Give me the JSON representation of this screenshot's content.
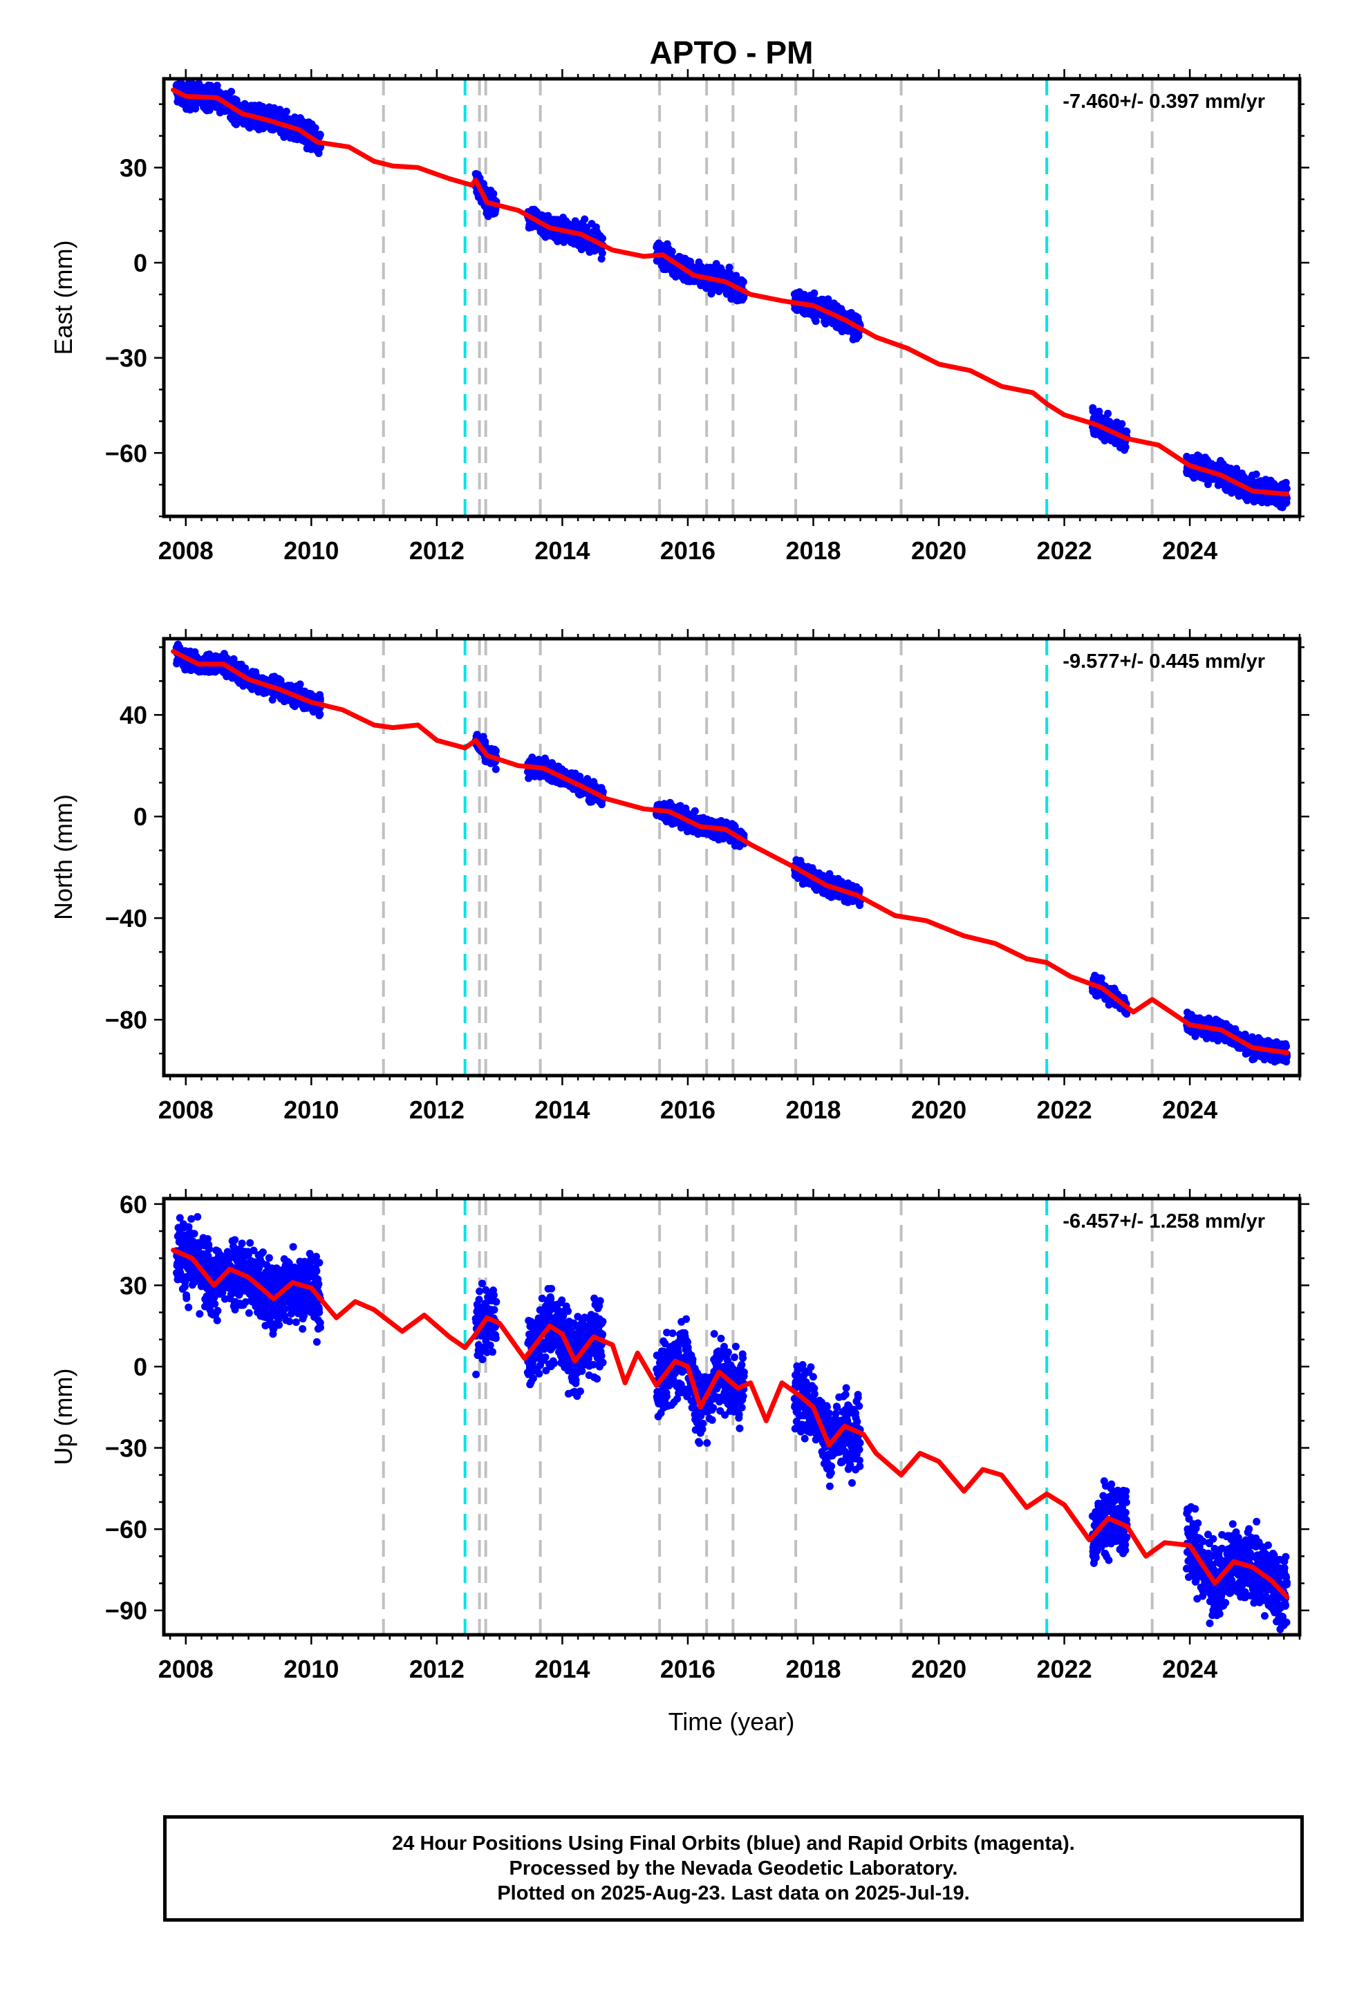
{
  "title": "APTO - PM",
  "xlabel": "Time (year)",
  "footer": {
    "line1": "24 Hour Positions Using Final Orbits (blue) and Rapid Orbits (magenta).",
    "line2": "Processed by the Nevada Geodetic Laboratory.",
    "line3": "Plotted on 2025-Aug-23. Last data on 2025-Jul-19."
  },
  "colors": {
    "observations": "#0000ff",
    "model": "#ff0000",
    "equipment_change": "#00e5e5",
    "other_event": "#c0c0c0"
  },
  "chart_data": [
    {
      "type": "scatter",
      "component": "East",
      "ylabel": "East (mm)",
      "rate_text": "-7.460+/- 0.397 mm/yr",
      "xlim": [
        2007.65,
        2025.75
      ],
      "ylim": [
        -80,
        58
      ],
      "xticks": [
        2008,
        2010,
        2012,
        2014,
        2016,
        2018,
        2020,
        2022,
        2024
      ],
      "yticks": [
        -60,
        -30,
        0,
        30
      ],
      "grid": false,
      "data_segments": [
        [
          2007.85,
          2010.15
        ],
        [
          2012.62,
          2012.95
        ],
        [
          2013.45,
          2014.65
        ],
        [
          2015.5,
          2016.9
        ],
        [
          2017.7,
          2018.75
        ],
        [
          2022.45,
          2023.0
        ],
        [
          2023.95,
          2025.55
        ]
      ],
      "series": [
        {
          "kind": "model",
          "x": [
            2007.8,
            2008.0,
            2008.5,
            2008.9,
            2009.3,
            2009.8,
            2010.1,
            2010.6,
            2011.0,
            2011.3,
            2011.7,
            2012.2,
            2012.55,
            2012.62,
            2012.8,
            2013.3,
            2013.8,
            2014.3,
            2014.8,
            2015.3,
            2015.6,
            2016.1,
            2016.6,
            2017.0,
            2017.5,
            2018.0,
            2018.5,
            2019.0,
            2019.5,
            2020.0,
            2020.5,
            2021.0,
            2021.5,
            2021.72,
            2022.0,
            2022.5,
            2023.0,
            2023.5,
            2024.0,
            2024.5,
            2025.0,
            2025.55
          ],
          "y": [
            54.5,
            52.5,
            52.0,
            47.0,
            45.0,
            42.0,
            38.0,
            36.5,
            32.0,
            30.5,
            30.0,
            26.5,
            24.5,
            26.0,
            19.0,
            16.5,
            11.0,
            9.0,
            4.0,
            2.0,
            2.5,
            -4.0,
            -6.0,
            -10.0,
            -12.0,
            -13.5,
            -18.0,
            -23.5,
            -27.0,
            -32.0,
            -34.0,
            -39.0,
            -41.0,
            -44.5,
            -48.0,
            -51.0,
            -55.5,
            -57.5,
            -64.0,
            -67.0,
            -72.0,
            -73.0
          ]
        }
      ]
    },
    {
      "type": "scatter",
      "component": "North",
      "ylabel": "North (mm)",
      "rate_text": "-9.577+/- 0.445 mm/yr",
      "xlim": [
        2007.65,
        2025.75
      ],
      "ylim": [
        -102,
        70
      ],
      "xticks": [
        2008,
        2010,
        2012,
        2014,
        2016,
        2018,
        2020,
        2022,
        2024
      ],
      "yticks": [
        -80,
        -40,
        0,
        40
      ],
      "grid": false,
      "data_segments": [
        [
          2007.85,
          2010.15
        ],
        [
          2012.62,
          2012.95
        ],
        [
          2013.45,
          2014.65
        ],
        [
          2015.5,
          2016.9
        ],
        [
          2017.7,
          2018.75
        ],
        [
          2022.45,
          2023.0
        ],
        [
          2023.95,
          2025.55
        ]
      ],
      "series": [
        {
          "kind": "model",
          "x": [
            2007.8,
            2008.2,
            2008.6,
            2009.0,
            2009.5,
            2010.0,
            2010.5,
            2011.0,
            2011.3,
            2011.7,
            2012.0,
            2012.45,
            2012.62,
            2012.8,
            2013.3,
            2013.7,
            2014.3,
            2014.7,
            2015.3,
            2015.7,
            2016.2,
            2016.6,
            2017.0,
            2017.7,
            2018.2,
            2018.7,
            2019.3,
            2019.8,
            2020.4,
            2020.9,
            2021.4,
            2021.72,
            2022.1,
            2022.6,
            2023.1,
            2023.4,
            2024.0,
            2024.5,
            2025.0,
            2025.55
          ],
          "y": [
            65.0,
            60.0,
            60.0,
            54.0,
            50.0,
            45.0,
            42.0,
            36.0,
            35.0,
            36.0,
            30.0,
            27.0,
            30.0,
            24.0,
            20.0,
            19.0,
            12.0,
            7.0,
            3.0,
            2.0,
            -4.0,
            -5.0,
            -11.0,
            -20.0,
            -27.0,
            -31.0,
            -39.0,
            -41.0,
            -47.0,
            -50.0,
            -56.0,
            -57.5,
            -63.0,
            -67.5,
            -77.0,
            -72.0,
            -82.0,
            -84.0,
            -91.0,
            -93.0
          ]
        }
      ]
    },
    {
      "type": "scatter",
      "component": "Up",
      "ylabel": "Up (mm)",
      "rate_text": "-6.457+/- 1.258 mm/yr",
      "xlim": [
        2007.65,
        2025.75
      ],
      "ylim": [
        -99,
        62
      ],
      "xticks": [
        2008,
        2010,
        2012,
        2014,
        2016,
        2018,
        2020,
        2022,
        2024
      ],
      "yticks": [
        -90,
        -60,
        -30,
        0,
        30,
        60
      ],
      "grid": false,
      "data_segments": [
        [
          2007.85,
          2010.15
        ],
        [
          2012.62,
          2012.95
        ],
        [
          2013.45,
          2014.65
        ],
        [
          2015.5,
          2016.9
        ],
        [
          2017.7,
          2018.75
        ],
        [
          2022.45,
          2023.0
        ],
        [
          2023.95,
          2025.55
        ]
      ],
      "series": [
        {
          "kind": "model",
          "x": [
            2007.8,
            2008.1,
            2008.45,
            2008.7,
            2009.0,
            2009.4,
            2009.7,
            2010.0,
            2010.4,
            2010.7,
            2011.0,
            2011.45,
            2011.8,
            2012.2,
            2012.45,
            2012.62,
            2012.8,
            2013.0,
            2013.4,
            2013.8,
            2014.0,
            2014.2,
            2014.5,
            2014.8,
            2015.0,
            2015.2,
            2015.5,
            2015.8,
            2016.0,
            2016.2,
            2016.5,
            2016.8,
            2017.0,
            2017.25,
            2017.5,
            2017.8,
            2018.0,
            2018.25,
            2018.5,
            2018.8,
            2019.0,
            2019.4,
            2019.7,
            2020.0,
            2020.4,
            2020.7,
            2021.0,
            2021.4,
            2021.72,
            2022.0,
            2022.4,
            2022.7,
            2023.0,
            2023.3,
            2023.6,
            2024.0,
            2024.4,
            2024.7,
            2025.0,
            2025.3,
            2025.55
          ],
          "y": [
            43,
            40,
            30,
            36,
            33,
            25,
            31,
            29,
            18,
            24,
            21,
            13,
            19,
            11,
            7,
            12,
            18,
            16,
            3,
            15,
            12,
            2,
            11,
            8,
            -6,
            5,
            -7,
            2,
            0,
            -15,
            -2,
            -8,
            -6,
            -20,
            -6,
            -11,
            -15,
            -29,
            -22,
            -25,
            -32,
            -40,
            -32,
            -35,
            -46,
            -38,
            -40,
            -52,
            -47,
            -51,
            -64,
            -56,
            -59,
            -70,
            -65,
            -66,
            -80,
            -72,
            -74,
            -79,
            -85
          ]
        }
      ]
    }
  ],
  "events": {
    "equipment_change_years": [
      2012.45,
      2021.72
    ],
    "other_event_years": [
      2011.15,
      2012.68,
      2012.78,
      2013.65,
      2015.55,
      2016.3,
      2016.72,
      2017.72,
      2019.4,
      2023.4
    ]
  }
}
